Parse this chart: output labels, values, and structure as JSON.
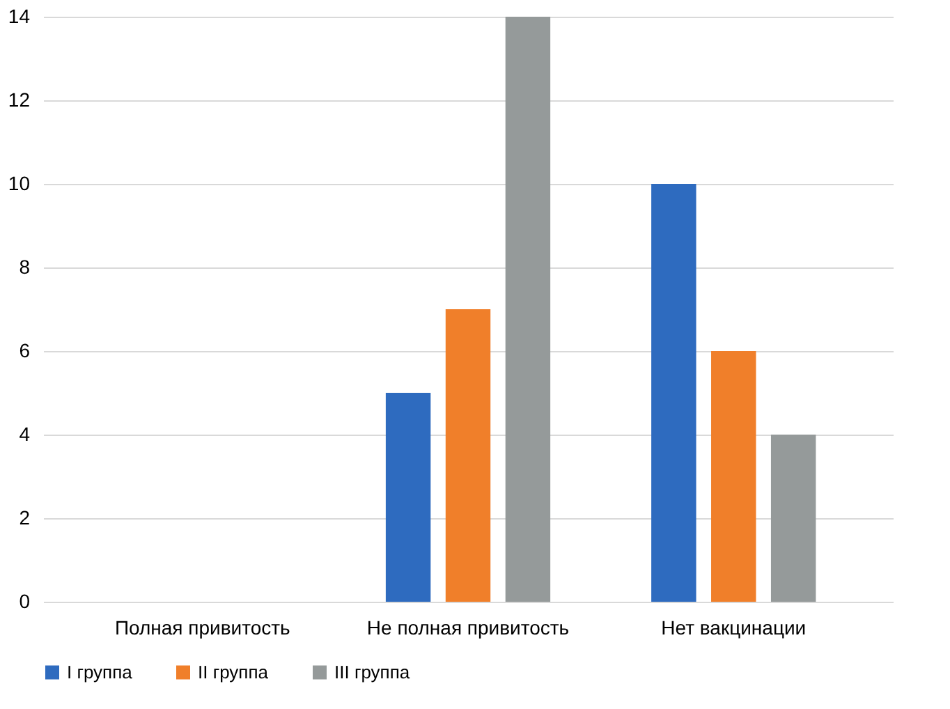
{
  "chart_data": {
    "type": "bar",
    "categories": [
      "Полная привитость",
      "Не полная привитость",
      "Нет вакцинации"
    ],
    "series": [
      {
        "name": "I группа",
        "color": "#2e6bbf",
        "values": [
          0,
          5,
          10
        ]
      },
      {
        "name": "II группа",
        "color": "#f07f2a",
        "values": [
          0,
          7,
          6
        ]
      },
      {
        "name": "III группа",
        "color": "#959a9a",
        "values": [
          0,
          14,
          4
        ]
      }
    ],
    "ylim": [
      0,
      14
    ],
    "yticks": [
      0,
      2,
      4,
      6,
      8,
      10,
      12,
      14
    ],
    "grid": "y",
    "legend": "bottom"
  }
}
